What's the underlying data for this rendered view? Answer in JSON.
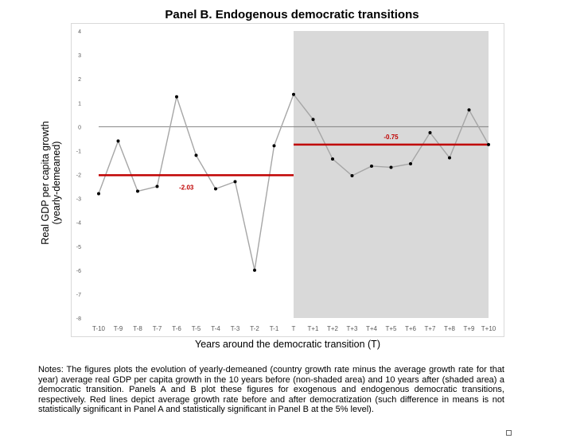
{
  "title": "Panel B. Endogenous democratic transitions",
  "ylabel_line1": "Real GDP per capita growth",
  "ylabel_line2": "(yearly-demeaned)",
  "xlabel": "Years around the democratic transition (T)",
  "notes": "Notes: The figures plots the evolution of yearly-demeaned (country growth rate minus the average growth rate for that year) average real GDP per capita growth in the 10 years before (non-shaded area) and 10 years after (shaded area) a democratic transition. Panels A and B plot these figures for exogenous and endogenous democratic transitions, respectively. Red lines depict average growth rate before and after democratization (such difference in means is not statistically significant in Panel A and statistically significant in Panel B at the 5% level).",
  "chart_data": {
    "type": "line",
    "categories": [
      "T-10",
      "T-9",
      "T-8",
      "T-7",
      "T-6",
      "T-5",
      "T-4",
      "T-3",
      "T-2",
      "T-1",
      "T",
      "T+1",
      "T+2",
      "T+3",
      "T+4",
      "T+5",
      "T+6",
      "T+7",
      "T+8",
      "T+9",
      "T+10"
    ],
    "series": [
      {
        "values": [
          -2.8,
          -0.6,
          -2.7,
          -2.5,
          1.25,
          -1.2,
          -2.6,
          -2.3,
          -6.0,
          -0.8,
          1.35,
          0.3,
          -1.35,
          -2.05,
          -1.65,
          -1.7,
          -1.55,
          -0.25,
          -1.3,
          0.7,
          -0.75
        ]
      }
    ],
    "ylim": [
      -8,
      4
    ],
    "yticks": [
      "-8",
      "-7",
      "-6",
      "-5",
      "-4",
      "-3",
      "-2",
      "-1",
      "0",
      "1",
      "2",
      "3",
      "4"
    ],
    "shaded_region": {
      "from": "T",
      "to": "T+10"
    },
    "mean_lines": [
      {
        "label": "-2.03",
        "value": -2.03,
        "from": "T-10",
        "to": "T"
      },
      {
        "label": "-0.75",
        "value": -0.75,
        "from": "T",
        "to": "T+10"
      }
    ],
    "zero_line": true,
    "grid": false,
    "colors": {
      "series": "#a6a6a6",
      "points": "#000000",
      "mean": "#c00000",
      "shade": "#d9d9d9",
      "zero": "#808080",
      "ticks": "#595959"
    }
  }
}
